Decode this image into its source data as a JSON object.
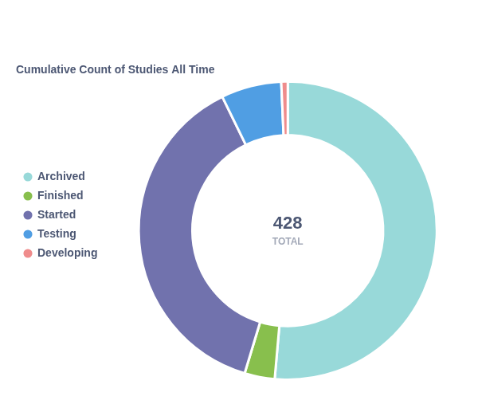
{
  "chart_data": {
    "type": "doughnut",
    "title": "Cumulative Count of Studies All Time",
    "categories": [
      "Archived",
      "Finished",
      "Started",
      "Testing",
      "Developing"
    ],
    "values": [
      220,
      14,
      163,
      28,
      3
    ],
    "colors": [
      "#98d9d9",
      "#88bf4d",
      "#7172ad",
      "#509ee3",
      "#ef8c8c"
    ],
    "legend": "left",
    "center_value": 428,
    "center_label": "TOTAL"
  }
}
